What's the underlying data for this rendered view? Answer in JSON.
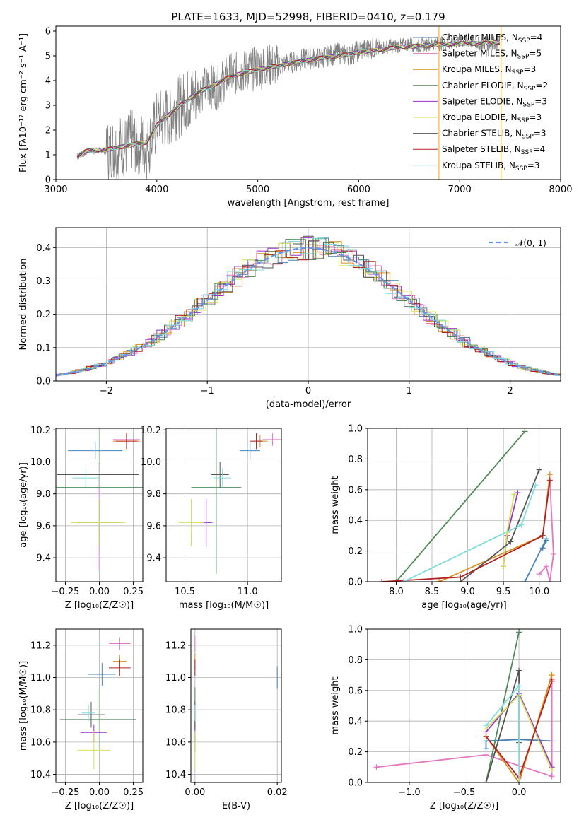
{
  "title": "PLATE=1633, MJD=52998, FIBERID=0410, z=0.179",
  "models": [
    {
      "label": "Chabrier MILES, N",
      "sub": "SSP",
      "eq": "=4",
      "color": "#4682b4"
    },
    {
      "label": "Salpeter MILES, N",
      "sub": "SSP",
      "eq": "=5",
      "color": "#e377c2"
    },
    {
      "label": "Kroupa MILES, N",
      "sub": "SSP",
      "eq": "=3",
      "color": "#d98e1a"
    },
    {
      "label": "Chabrier ELODIE, N",
      "sub": "SSP",
      "eq": "=2",
      "color": "#4f8a56"
    },
    {
      "label": "Salpeter ELODIE, N",
      "sub": "SSP",
      "eq": "=3",
      "color": "#9932cc"
    },
    {
      "label": "Kroupa ELODIE, N",
      "sub": "SSP",
      "eq": "=3",
      "color": "#d4e157"
    },
    {
      "label": "Chabrier STELIB, N",
      "sub": "SSP",
      "eq": "=3",
      "color": "#555555"
    },
    {
      "label": "Salpeter STELIB, N",
      "sub": "SSP",
      "eq": "=4",
      "color": "#b22222"
    },
    {
      "label": "Kroupa STELIB, N",
      "sub": "SSP",
      "eq": "=3",
      "color": "#7fdcdc"
    }
  ],
  "chart_data": [
    {
      "id": "spectrum",
      "type": "line",
      "xlabel": "wavelength [Angstrom, rest frame]",
      "ylabel": "Flux [fλ10⁻¹⁷ erg cm⁻² s⁻¹ A⁻¹]",
      "xlim": [
        3000,
        8000
      ],
      "ylim": [
        0,
        6.2
      ],
      "xticks": [
        3000,
        4000,
        5000,
        6000,
        7000,
        8000
      ],
      "yticks": [
        0,
        1,
        2,
        3,
        4,
        5,
        6
      ],
      "data_color": "#808080",
      "data_x": [
        3210,
        3260,
        3300,
        3350,
        3400,
        3450,
        3500,
        3550,
        3600,
        3650,
        3700,
        3750,
        3800,
        3850,
        3900,
        3950,
        4000,
        4100,
        4200,
        4300,
        4400,
        4500,
        4600,
        4700,
        4800,
        4900,
        5000,
        5100,
        5200,
        5300,
        5400,
        5500,
        5600,
        5700,
        5800,
        5900,
        6000,
        6100,
        6200,
        6300,
        6400,
        6500,
        6600,
        6700,
        6800,
        6900,
        7000,
        7100,
        7200,
        7300,
        7400
      ],
      "data_y": [
        0.9,
        1.0,
        1.1,
        1.2,
        1.1,
        1.2,
        1.1,
        1.3,
        1.2,
        1.4,
        1.3,
        1.6,
        1.4,
        1.5,
        1.2,
        1.7,
        2.3,
        2.5,
        2.9,
        3.2,
        3.5,
        3.8,
        3.7,
        4.2,
        4.3,
        4.4,
        4.5,
        4.6,
        4.6,
        4.7,
        4.8,
        4.9,
        4.9,
        5.0,
        5.1,
        5.0,
        5.2,
        5.3,
        5.3,
        5.4,
        5.4,
        5.5,
        5.4,
        5.5,
        5.5,
        5.5,
        5.6,
        5.6,
        5.5,
        5.5,
        5.6
      ],
      "model_x": [
        3210,
        3300,
        3400,
        3500,
        3600,
        3700,
        3800,
        3900,
        4000,
        4100,
        4200,
        4300,
        4400,
        4500,
        4600,
        4700,
        4800,
        4900,
        5000,
        5200,
        5400,
        5600,
        5800,
        6000,
        6200,
        6400,
        6600,
        6800,
        7000,
        7200,
        7400
      ],
      "model_y": [
        0.95,
        1.15,
        1.2,
        1.2,
        1.3,
        1.35,
        1.45,
        1.5,
        2.2,
        2.55,
        2.9,
        3.2,
        3.5,
        3.7,
        3.9,
        4.1,
        4.25,
        4.35,
        4.45,
        4.6,
        4.75,
        4.9,
        5.0,
        5.15,
        5.25,
        5.35,
        5.4,
        5.45,
        5.5,
        5.5,
        5.55
      ],
      "ticks_labels": true
    },
    {
      "id": "residuals",
      "type": "step",
      "xlabel": "(data-model)/error",
      "ylabel": "Normed distribution",
      "xlim": [
        -2.5,
        2.5
      ],
      "ylim": [
        0,
        0.46
      ],
      "xticks": [
        -2,
        -1,
        0,
        1,
        2
      ],
      "yticks": [
        0.0,
        0.1,
        0.2,
        0.3,
        0.4
      ],
      "gauss_label": "𝒩(0, 1)",
      "gauss_color": "#6495ed"
    },
    {
      "id": "age_vs_Z",
      "type": "errorbar",
      "xlabel": "Z [log₁₀(Z/Z☉)]",
      "ylabel": "age  [log₁₀(age/yr)]",
      "xlim": [
        -0.32,
        0.32
      ],
      "ylim": [
        9.25,
        10.21
      ],
      "xticks": [
        -0.25,
        0.0,
        0.25
      ],
      "yticks": [
        9.4,
        9.6,
        9.8,
        10.0,
        10.2
      ],
      "points": [
        {
          "m": 0,
          "x": -0.03,
          "y": 10.07,
          "xe": 0.2,
          "ye": 0.05
        },
        {
          "m": 1,
          "x": 0.2,
          "y": 10.14,
          "xe": 0.1,
          "ye": 0.04
        },
        {
          "m": 2,
          "x": 0.2,
          "y": 10.13,
          "xe": 0.1,
          "ye": 0.04
        },
        {
          "m": 3,
          "x": -0.01,
          "y": 9.84,
          "xe": 0.6,
          "ye": 0.54
        },
        {
          "m": 4,
          "x": -0.01,
          "y": 9.62,
          "xe": 0.15,
          "ye": 0.3
        },
        {
          "m": 5,
          "x": -0.01,
          "y": 9.62,
          "xe": 0.2,
          "ye": 0.15
        },
        {
          "m": 6,
          "x": -0.01,
          "y": 9.92,
          "xe": 0.3,
          "ye": 0.08
        },
        {
          "m": 7,
          "x": 0.2,
          "y": 10.13,
          "xe": 0.08,
          "ye": 0.05
        },
        {
          "m": 8,
          "x": -0.1,
          "y": 9.9,
          "xe": 0.1,
          "ye": 0.06
        }
      ]
    },
    {
      "id": "age_vs_mass",
      "type": "errorbar",
      "xlabel": "mass [log₁₀(M/M☉)]",
      "ylabel": "",
      "xlim": [
        10.35,
        11.27
      ],
      "ylim": [
        9.25,
        10.21
      ],
      "xticks": [
        10.5,
        11.0
      ],
      "yticks": [
        9.4,
        9.6,
        9.8,
        10.0,
        10.2
      ],
      "points": [
        {
          "m": 0,
          "x": 11.02,
          "y": 10.07,
          "xe": 0.08,
          "ye": 0.05
        },
        {
          "m": 1,
          "x": 11.2,
          "y": 10.14,
          "xe": 0.08,
          "ye": 0.04
        },
        {
          "m": 2,
          "x": 11.1,
          "y": 10.13,
          "xe": 0.06,
          "ye": 0.04
        },
        {
          "m": 3,
          "x": 10.75,
          "y": 9.84,
          "xe": 0.2,
          "ye": 0.54
        },
        {
          "m": 4,
          "x": 10.67,
          "y": 9.62,
          "xe": 0.05,
          "ye": 0.15
        },
        {
          "m": 5,
          "x": 10.55,
          "y": 9.62,
          "xe": 0.1,
          "ye": 0.15
        },
        {
          "m": 6,
          "x": 10.78,
          "y": 9.92,
          "xe": 0.07,
          "ye": 0.08
        },
        {
          "m": 7,
          "x": 11.07,
          "y": 10.13,
          "xe": 0.05,
          "ye": 0.05
        },
        {
          "m": 8,
          "x": 10.8,
          "y": 9.9,
          "xe": 0.07,
          "ye": 0.06
        }
      ]
    },
    {
      "id": "weight_vs_age",
      "type": "line",
      "xlabel": "age  [log₁₀(age/yr)]",
      "ylabel": "mass weight",
      "xlim": [
        7.6,
        10.3
      ],
      "ylim": [
        0,
        1
      ],
      "xticks": [
        8.0,
        8.5,
        9.0,
        9.5,
        10.0
      ],
      "yticks": [
        0.0,
        0.2,
        0.4,
        0.6,
        0.8,
        1.0
      ],
      "series": [
        {
          "m": 0,
          "x": [
            9.8,
            10.1,
            10.05,
            10.1
          ],
          "y": [
            0.0,
            0.28,
            0.22,
            0.27
          ]
        },
        {
          "m": 1,
          "x": [
            10.0,
            10.1,
            10.15,
            10.2,
            10.15
          ],
          "y": [
            0.05,
            0.1,
            0.0,
            0.18,
            0.67
          ]
        },
        {
          "m": 2,
          "x": [
            8.6,
            10.05,
            10.15
          ],
          "y": [
            0.0,
            0.3,
            0.7
          ]
        },
        {
          "m": 3,
          "x": [
            8.0,
            9.8
          ],
          "y": [
            0.0,
            0.98
          ]
        },
        {
          "m": 4,
          "x": [
            9.5,
            9.55,
            9.7
          ],
          "y": [
            0.1,
            0.3,
            0.58
          ]
        },
        {
          "m": 5,
          "x": [
            9.5,
            9.55,
            9.65
          ],
          "y": [
            0.1,
            0.32,
            0.57
          ]
        },
        {
          "m": 6,
          "x": [
            8.9,
            9.6,
            10.0
          ],
          "y": [
            0.0,
            0.26,
            0.73
          ]
        },
        {
          "m": 7,
          "x": [
            7.8,
            8.9,
            10.05,
            10.15
          ],
          "y": [
            0.0,
            0.03,
            0.3,
            0.66
          ]
        },
        {
          "m": 8,
          "x": [
            8.1,
            9.75,
            9.95
          ],
          "y": [
            0.0,
            0.37,
            0.63
          ]
        }
      ]
    },
    {
      "id": "mass_vs_Z",
      "type": "errorbar",
      "xlabel": "Z [log₁₀(Z/Z☉)]",
      "ylabel": "mass [log₁₀(M/M☉)]",
      "xlim": [
        -0.32,
        0.32
      ],
      "ylim": [
        10.35,
        11.3
      ],
      "xticks": [
        -0.25,
        0.0,
        0.25
      ],
      "yticks": [
        10.4,
        10.6,
        10.8,
        11.0,
        11.2
      ],
      "points": [
        {
          "m": 0,
          "x": 0.02,
          "y": 11.02,
          "xe": 0.1,
          "ye": 0.07
        },
        {
          "m": 1,
          "x": 0.15,
          "y": 11.21,
          "xe": 0.08,
          "ye": 0.04
        },
        {
          "m": 2,
          "x": 0.15,
          "y": 11.1,
          "xe": 0.05,
          "ye": 0.04
        },
        {
          "m": 3,
          "x": -0.01,
          "y": 10.74,
          "xe": 0.28,
          "ye": 0.2
        },
        {
          "m": 4,
          "x": -0.04,
          "y": 10.66,
          "xe": 0.1,
          "ye": 0.05
        },
        {
          "m": 5,
          "x": -0.04,
          "y": 10.55,
          "xe": 0.12,
          "ye": 0.12
        },
        {
          "m": 6,
          "x": -0.06,
          "y": 10.77,
          "xe": 0.1,
          "ye": 0.08
        },
        {
          "m": 7,
          "x": 0.15,
          "y": 11.06,
          "xe": 0.08,
          "ye": 0.05
        },
        {
          "m": 8,
          "x": -0.08,
          "y": 10.78,
          "xe": 0.05,
          "ye": 0.05
        }
      ]
    },
    {
      "id": "mass_vs_EBV",
      "type": "errorbar",
      "xlabel": "E(B-V)",
      "ylabel": "",
      "xlim": [
        -0.001,
        0.021
      ],
      "ylim": [
        10.35,
        11.3
      ],
      "xticks": [
        0.0,
        0.02
      ],
      "yticks": [
        10.4,
        10.6,
        10.8,
        11.0,
        11.2
      ],
      "points": [
        {
          "m": 0,
          "x": 0.02,
          "y": 11.0,
          "xe": 0,
          "ye": 0.07
        },
        {
          "m": 1,
          "x": 0.0,
          "y": 11.21,
          "xe": 0,
          "ye": 0.05
        },
        {
          "m": 2,
          "x": 0.0,
          "y": 11.1,
          "xe": 0,
          "ye": 0.05
        },
        {
          "m": 3,
          "x": 0.0,
          "y": 10.74,
          "xe": 0,
          "ye": 0.2
        },
        {
          "m": 4,
          "x": 0.0,
          "y": 10.66,
          "xe": 0,
          "ye": 0.05
        },
        {
          "m": 5,
          "x": 0.0,
          "y": 10.55,
          "xe": 0,
          "ye": 0.12
        },
        {
          "m": 6,
          "x": 0.0,
          "y": 10.77,
          "xe": 0,
          "ye": 0.08
        },
        {
          "m": 7,
          "x": 0.0,
          "y": 11.06,
          "xe": 0,
          "ye": 0.05
        },
        {
          "m": 8,
          "x": 0.0,
          "y": 10.78,
          "xe": 0,
          "ye": 0.05
        }
      ]
    },
    {
      "id": "weight_vs_Z",
      "type": "line",
      "xlabel": "Z [log₁₀(Z/Z☉)]",
      "ylabel": "mass weight",
      "xlim": [
        -1.38,
        0.38
      ],
      "ylim": [
        0,
        1
      ],
      "xticks": [
        -1.0,
        -0.5,
        0.0
      ],
      "yticks": [
        0.0,
        0.2,
        0.4,
        0.6,
        0.8,
        1.0
      ],
      "series": [
        {
          "m": 0,
          "x": [
            -0.3,
            -0.3,
            0.0,
            0.3
          ],
          "y": [
            0.22,
            0.27,
            0.28,
            0.27
          ]
        },
        {
          "m": 1,
          "x": [
            -1.3,
            -0.3,
            0.3,
            0.3,
            0.3
          ],
          "y": [
            0.1,
            0.18,
            0.04,
            0.67,
            0.1
          ]
        },
        {
          "m": 2,
          "x": [
            -0.3,
            0.0,
            0.3
          ],
          "y": [
            0.3,
            0.0,
            0.7
          ]
        },
        {
          "m": 3,
          "x": [
            -0.3,
            0.0
          ],
          "y": [
            0.0,
            0.98
          ]
        },
        {
          "m": 4,
          "x": [
            -0.3,
            0.0,
            0.3
          ],
          "y": [
            0.33,
            0.58,
            0.1
          ]
        },
        {
          "m": 5,
          "x": [
            -0.3,
            0.0,
            0.3
          ],
          "y": [
            0.35,
            0.57,
            0.08
          ]
        },
        {
          "m": 6,
          "x": [
            -0.3,
            0.0,
            0.0
          ],
          "y": [
            0.0,
            0.73,
            0.26
          ]
        },
        {
          "m": 7,
          "x": [
            -0.3,
            0.0,
            0.3
          ],
          "y": [
            0.3,
            0.03,
            0.66
          ]
        },
        {
          "m": 8,
          "x": [
            -0.3,
            0.0,
            0.0
          ],
          "y": [
            0.37,
            0.63,
            0.0
          ]
        }
      ]
    }
  ]
}
